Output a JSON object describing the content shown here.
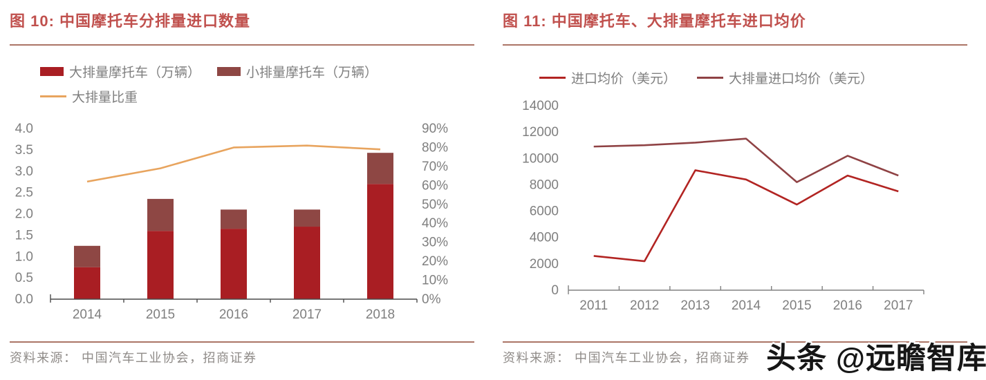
{
  "figure10": {
    "title": "图 10:  中国摩托车分排量进口数量",
    "source": "资料来源：  中国汽车工业协会，招商证券"
  },
  "figure11": {
    "title": "图 11:  中国摩托车、大排量摩托车进口均价",
    "source": "资料来源：  中国汽车工业协会，招商证券"
  },
  "watermark": "头条 @远瞻智库",
  "colors": {
    "title_red": "#C0504D",
    "rule": "#AB7465",
    "tick_gray": "#7F7F7F",
    "axis_dark": "#4A4A4A",
    "axis_gray": "#808080"
  },
  "chart_data": [
    {
      "id": "figure10",
      "type": "bar",
      "title": "中国摩托车分排量进口数量",
      "legend_position": "top",
      "grid": false,
      "categories": [
        "2014",
        "2015",
        "2016",
        "2017",
        "2018"
      ],
      "series": [
        {
          "name": "大排量摩托车（万辆）",
          "type": "bar",
          "stack": "imports",
          "axis": "left",
          "color": "#A91E23",
          "values": [
            0.75,
            1.6,
            1.65,
            1.7,
            2.7
          ]
        },
        {
          "name": "小排量摩托车（万辆）",
          "type": "bar",
          "stack": "imports",
          "axis": "left",
          "color": "#8E4744",
          "values": [
            0.5,
            0.75,
            0.45,
            0.4,
            0.73
          ]
        },
        {
          "name": "大排量比重",
          "type": "line",
          "axis": "right",
          "color": "#E8A45E",
          "values": [
            62,
            69,
            80,
            81,
            79
          ]
        }
      ],
      "left_axis": {
        "min": 0,
        "max": 4,
        "step": 0.5,
        "labels": [
          "0.0",
          "0.5",
          "1.0",
          "1.5",
          "2.0",
          "2.5",
          "3.0",
          "3.5",
          "4.0"
        ]
      },
      "right_axis": {
        "min": 0,
        "max": 90,
        "step": 10,
        "labels": [
          "0%",
          "10%",
          "20%",
          "30%",
          "40%",
          "50%",
          "60%",
          "70%",
          "80%",
          "90%"
        ]
      }
    },
    {
      "id": "figure11",
      "type": "line",
      "title": "中国摩托车、大排量摩托车进口均价",
      "legend_position": "top",
      "grid": false,
      "categories": [
        "2011",
        "2012",
        "2013",
        "2014",
        "2015",
        "2016",
        "2017"
      ],
      "series": [
        {
          "name": "进口均价（美元）",
          "type": "line",
          "axis": "left",
          "color": "#B22422",
          "values": [
            2600,
            2200,
            9100,
            8400,
            6500,
            8700,
            7500
          ]
        },
        {
          "name": "大排量进口均价（美元）",
          "type": "line",
          "axis": "left",
          "color": "#8F4244",
          "values": [
            10900,
            11000,
            11200,
            11500,
            8200,
            10200,
            8700
          ]
        }
      ],
      "y_axis": {
        "min": 0,
        "max": 14000,
        "step": 2000,
        "labels": [
          "0",
          "2000",
          "4000",
          "6000",
          "8000",
          "10000",
          "12000",
          "14000"
        ]
      }
    }
  ]
}
